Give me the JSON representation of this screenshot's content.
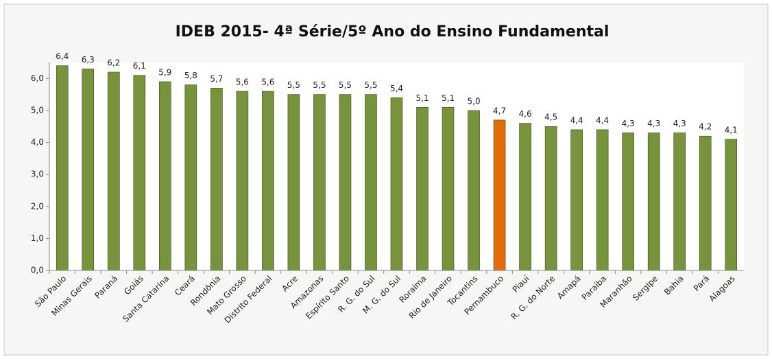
{
  "chart_data": {
    "type": "bar",
    "title": "IDEB 2015- 4ª Série/5º Ano do Ensino Fundamental",
    "categories": [
      "São Paulo",
      "Minas Gerais",
      "Paraná",
      "Goiás",
      "Santa Catarina",
      "Ceará",
      "Rondônia",
      "Mato Grosso",
      "Distrito Federal",
      "Acre",
      "Amazonas",
      "Espírito Santo",
      "R. G. do Sul",
      "M. G. do Sul",
      "Roraima",
      "Rio de Janeiro",
      "Tocantins",
      "Pernambuco",
      "Piauí",
      "R. G. do Norte",
      "Amapá",
      "Paraíba",
      "Maranhão",
      "Sergipe",
      "Bahia",
      "Pará",
      "Alagoas"
    ],
    "values": [
      6.4,
      6.3,
      6.2,
      6.1,
      5.9,
      5.8,
      5.7,
      5.6,
      5.6,
      5.5,
      5.5,
      5.5,
      5.5,
      5.4,
      5.1,
      5.1,
      5.0,
      4.7,
      4.6,
      4.5,
      4.4,
      4.4,
      4.3,
      4.3,
      4.3,
      4.2,
      4.1
    ],
    "value_labels": [
      "6,4",
      "6,3",
      "6,2",
      "6,1",
      "5,9",
      "5,8",
      "5,7",
      "5,6",
      "5,6",
      "5,5",
      "5,5",
      "5,5",
      "5,5",
      "5,4",
      "5,1",
      "5,1",
      "5,0",
      "4,7",
      "4,6",
      "4,5",
      "4,4",
      "4,4",
      "4,3",
      "4,3",
      "4,3",
      "4,2",
      "4,1"
    ],
    "colors": [
      "#77933c",
      "#77933c",
      "#77933c",
      "#77933c",
      "#77933c",
      "#77933c",
      "#77933c",
      "#77933c",
      "#77933c",
      "#77933c",
      "#77933c",
      "#77933c",
      "#77933c",
      "#77933c",
      "#77933c",
      "#77933c",
      "#77933c",
      "#e36c09",
      "#77933c",
      "#77933c",
      "#77933c",
      "#77933c",
      "#77933c",
      "#77933c",
      "#77933c",
      "#77933c",
      "#77933c"
    ],
    "ylim": [
      0,
      6.5
    ],
    "yticks": [
      {
        "value": 0,
        "label": "0,0"
      },
      {
        "value": 1,
        "label": "1,0"
      },
      {
        "value": 2,
        "label": "2,0"
      },
      {
        "value": 3,
        "label": "3,0"
      },
      {
        "value": 4,
        "label": "4,0"
      },
      {
        "value": 5,
        "label": "5,0"
      },
      {
        "value": 6,
        "label": "6,0"
      }
    ],
    "grid": false
  }
}
